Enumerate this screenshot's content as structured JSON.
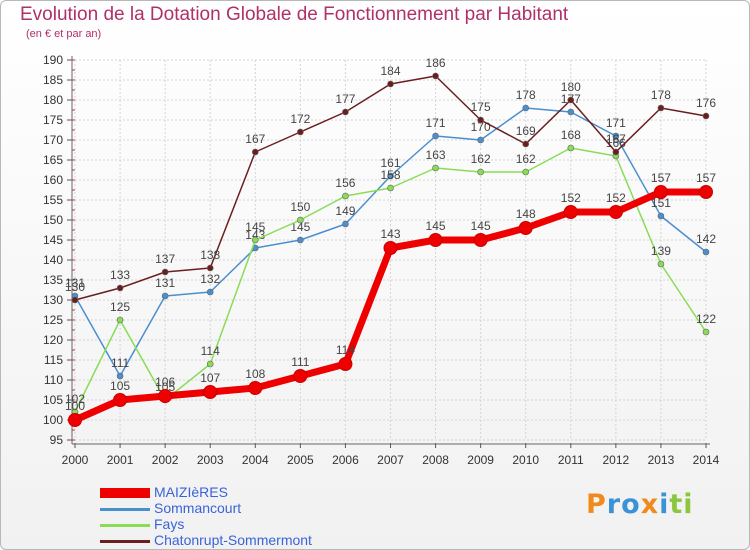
{
  "chart_data": {
    "type": "line",
    "title": "Evolution de la Dotation Globale de Fonctionnement par Habitant",
    "subtitle": "(en € et par an)",
    "xlabel": "",
    "ylabel": "",
    "x": [
      "2000",
      "2001",
      "2002",
      "2003",
      "2004",
      "2005",
      "2006",
      "2007",
      "2008",
      "2009",
      "2010",
      "2011",
      "2012",
      "2013",
      "2014"
    ],
    "ylim": [
      95,
      190
    ],
    "yticks": [
      95,
      100,
      105,
      110,
      115,
      120,
      125,
      130,
      135,
      140,
      145,
      150,
      155,
      160,
      165,
      170,
      175,
      180,
      185,
      190
    ],
    "grid": true,
    "legend_position": "bottom-left",
    "series": [
      {
        "name": "MAIZIèRES",
        "color": "#ee0000",
        "values": [
          100,
          105,
          106,
          107,
          108,
          111,
          114,
          143,
          145,
          145,
          148,
          152,
          152,
          157,
          157
        ]
      },
      {
        "name": "Sommancourt",
        "color": "#4a8fd0",
        "values": [
          131,
          111,
          131,
          132,
          143,
          145,
          149,
          161,
          171,
          170,
          178,
          177,
          171,
          151,
          142
        ]
      },
      {
        "name": "Fays",
        "color": "#88dd55",
        "values": [
          102,
          125,
          105,
          114,
          145,
          150,
          156,
          158,
          163,
          162,
          162,
          168,
          166,
          139,
          122
        ]
      },
      {
        "name": "Chatonrupt-Sommermont",
        "color": "#6b1e1e",
        "values": [
          130,
          133,
          137,
          138,
          167,
          172,
          177,
          184,
          186,
          175,
          169,
          180,
          167,
          178,
          176
        ]
      }
    ]
  },
  "logo": {
    "letters": [
      {
        "ch": "P",
        "color": "#f08a1c"
      },
      {
        "ch": "r",
        "color": "#3a93d6"
      },
      {
        "ch": "o",
        "color": "#3a93d6"
      },
      {
        "ch": "x",
        "color": "#f08a1c"
      },
      {
        "ch": "i",
        "color": "#3a93d6"
      },
      {
        "ch": "t",
        "color": "#8cc63f"
      },
      {
        "ch": "i",
        "color": "#8cc63f"
      }
    ]
  }
}
